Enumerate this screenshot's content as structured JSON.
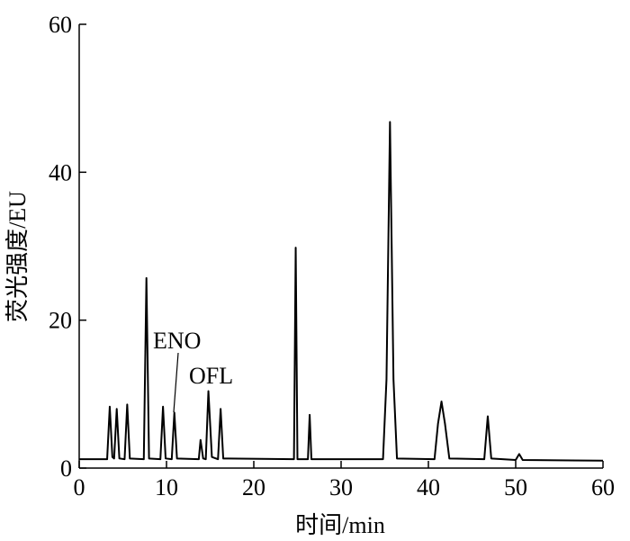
{
  "chart_data": {
    "type": "line",
    "x_label": "时间/min",
    "y_label": "荧光强度/EU",
    "annotations": [
      "ENO",
      "OFL"
    ],
    "xlim": [
      0,
      60
    ],
    "xticks": [
      0,
      10,
      20,
      30,
      40,
      50,
      60
    ],
    "ylim": [
      0,
      60
    ],
    "yticks": [
      0,
      20,
      40,
      60
    ],
    "series": [
      {
        "color": "#000000",
        "x": [
          0,
          3.2,
          3.5,
          3.8,
          4.0,
          4.3,
          4.6,
          5.2,
          5.5,
          5.8,
          7.4,
          7.7,
          8.0,
          9.3,
          9.6,
          9.9,
          10.6,
          10.9,
          11.2,
          13.7,
          13.9,
          14.2,
          14.5,
          14.8,
          15.2,
          15.9,
          16.2,
          16.5,
          24.6,
          24.8,
          25.0,
          26.2,
          26.4,
          26.6,
          34.8,
          35.2,
          35.6,
          36.0,
          36.4,
          40.7,
          41.1,
          41.5,
          41.9,
          42.4,
          46.4,
          46.8,
          47.2,
          50.0,
          50.4,
          50.8,
          60
        ],
        "values": [
          1.2,
          1.2,
          8.3,
          1.5,
          1.3,
          8.0,
          1.3,
          1.2,
          8.6,
          1.3,
          1.2,
          25.7,
          1.3,
          1.2,
          8.3,
          1.3,
          1.2,
          7.5,
          1.3,
          1.2,
          3.8,
          1.3,
          1.2,
          10.4,
          1.5,
          1.2,
          8.0,
          1.3,
          1.2,
          29.8,
          1.2,
          1.2,
          7.2,
          1.2,
          1.2,
          12,
          46.8,
          12,
          1.3,
          1.2,
          6,
          9.0,
          6,
          1.3,
          1.2,
          7.0,
          1.3,
          1.1,
          1.9,
          1.1,
          1.0
        ]
      }
    ]
  }
}
